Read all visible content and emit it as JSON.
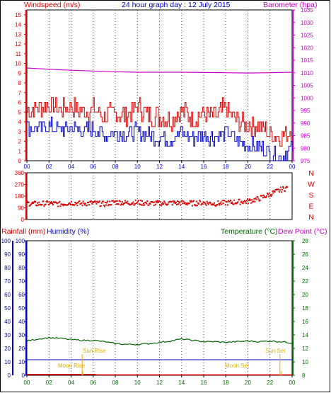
{
  "header": {
    "left_title": "Windspeed (m/s)",
    "center_title": "24 hour graph day : 12 July 2015",
    "right_title": "Barometer (hpa)"
  },
  "colors": {
    "frame": "#000000",
    "grid": "#1a1a1a",
    "wind_gust": "#dd0000",
    "wind_avg": "#0000cc",
    "barometer": "#cc00cc",
    "wind_dir": "#dd0000",
    "rain": "#dd0000",
    "humidity": "#0000cc",
    "temperature": "#006600",
    "sun_moon": "#e0b000"
  },
  "x_ticks": [
    "00",
    "02",
    "04",
    "06",
    "08",
    "10",
    "12",
    "14",
    "16",
    "18",
    "20",
    "22",
    "00"
  ],
  "wind_speed_ticks": [
    "0",
    "1",
    "2",
    "3",
    "4",
    "5",
    "6",
    "7",
    "8",
    "9",
    "10",
    "11",
    "12",
    "13",
    "14",
    "15"
  ],
  "barometer_ticks": [
    "975",
    "980",
    "985",
    "990",
    "995",
    "1000",
    "1005",
    "1010",
    "1015",
    "1020",
    "1025",
    "1030",
    "1035"
  ],
  "direction_ticks": [
    "0",
    "90",
    "180",
    "270",
    "360"
  ],
  "compass_labels": [
    "N",
    "W",
    "S",
    "E",
    "N"
  ],
  "lower_panel": {
    "rain_label": "Rainfall (mm)",
    "humidity_label": "Humidity (%)",
    "temp_label": "Temperature (°C)",
    "dew_label": "Dew Point (°C)",
    "pct_ticks": [
      "0",
      "10",
      "20",
      "30",
      "40",
      "50",
      "60",
      "70",
      "80",
      "90",
      "100"
    ],
    "temp_ticks": [
      "8",
      "10",
      "12",
      "14",
      "16",
      "18",
      "20",
      "22",
      "24",
      "26",
      "28"
    ],
    "sun_rise": "Sun Rise",
    "sun_set": "Sun Set",
    "moon_rise": "Moon Rise",
    "moon_set": "Moon Set"
  },
  "chart_data": [
    {
      "type": "line",
      "title": "24 hour graph day : 12 July 2015",
      "xlabel": "",
      "ylabel": "Windspeed (m/s)",
      "y2label": "Barometer (hpa)",
      "x_range": [
        0,
        24
      ],
      "ylim": [
        0,
        15.5
      ],
      "y2lim": [
        975,
        1035
      ],
      "series": [
        {
          "name": "Windspeed (m/s)",
          "axis": "left",
          "x": [
            0,
            1,
            2,
            3,
            4,
            5,
            6,
            7,
            8,
            9,
            10,
            11,
            12,
            13,
            14,
            15,
            16,
            17,
            18,
            19,
            20,
            21,
            22,
            23,
            24
          ],
          "values": [
            5.2,
            5.5,
            5.8,
            5.3,
            5.6,
            5.0,
            5.4,
            4.6,
            4.9,
            4.7,
            5.6,
            4.7,
            4.5,
            4.2,
            5.2,
            4.3,
            4.9,
            4.5,
            5.5,
            4.0,
            3.8,
            3.5,
            2.8,
            2.4,
            3.2
          ]
        },
        {
          "name": "",
          "axis": "left",
          "x": [
            0,
            1,
            2,
            3,
            4,
            5,
            6,
            7,
            8,
            9,
            10,
            11,
            12,
            13,
            14,
            15,
            16,
            17,
            18,
            19,
            20,
            21,
            22,
            23,
            24
          ],
          "values": [
            3.5,
            3.3,
            3.6,
            3.2,
            3.5,
            3.0,
            3.3,
            2.6,
            2.9,
            2.7,
            3.1,
            2.6,
            2.4,
            2.2,
            3.0,
            2.3,
            2.6,
            2.4,
            3.0,
            2.1,
            1.6,
            1.5,
            0.8,
            0.5,
            1.2
          ]
        },
        {
          "name": "Barometer (hpa)",
          "axis": "right",
          "x": [
            0,
            2,
            4,
            6,
            8,
            10,
            12,
            14,
            16,
            18,
            20,
            22,
            24
          ],
          "values": [
            1011.9,
            1011.4,
            1011.0,
            1010.7,
            1010.4,
            1010.2,
            1010.2,
            1010.2,
            1010.1,
            1010.0,
            1009.9,
            1010.0,
            1010.2
          ]
        }
      ]
    },
    {
      "type": "scatter",
      "title": "",
      "ylabel": "",
      "x_range": [
        0,
        24
      ],
      "ylim": [
        0,
        360
      ],
      "series": [
        {
          "name": "",
          "x": [
            0,
            1,
            2,
            3,
            4,
            5,
            6,
            7,
            8,
            9,
            10,
            11,
            12,
            13,
            14,
            15,
            16,
            17,
            18,
            19,
            20,
            21,
            22,
            23,
            24
          ],
          "values": [
            125,
            120,
            125,
            118,
            130,
            122,
            128,
            118,
            135,
            128,
            132,
            124,
            125,
            128,
            128,
            125,
            130,
            122,
            128,
            135,
            140,
            160,
            195,
            230,
            255
          ]
        }
      ]
    },
    {
      "type": "line",
      "title": "",
      "ylabel": "Rainfall (mm) / Humidity (%)",
      "y2label": "Temperature (°C) / Dew Point (°C)",
      "x_range": [
        0,
        24
      ],
      "ylim": [
        0,
        100
      ],
      "y2lim": [
        8,
        28
      ],
      "series": [
        {
          "name": "Temperature (°C)",
          "axis": "right",
          "x": [
            0,
            1,
            2,
            3,
            4,
            5,
            6,
            7,
            8,
            9,
            10,
            11,
            12,
            13,
            14,
            15,
            16,
            17,
            18,
            19,
            20,
            21,
            22,
            23,
            24
          ],
          "values": [
            13.1,
            13.4,
            13.6,
            13.5,
            13.3,
            13.2,
            13.2,
            13.0,
            12.7,
            12.6,
            12.6,
            12.7,
            12.9,
            13.1,
            13.4,
            13.2,
            13.0,
            13.0,
            12.9,
            13.0,
            13.1,
            13.0,
            13.1,
            13.0,
            12.8
          ]
        },
        {
          "name": "Rainfall (mm)",
          "axis": "left",
          "x": [
            0,
            6.2,
            24
          ],
          "values": [
            0.6,
            0.3,
            0.3
          ]
        }
      ],
      "annotations": [
        {
          "label": "Sun Rise",
          "x": 5.0
        },
        {
          "label": "Sun Set",
          "x": 22.9
        },
        {
          "label": "Moon Rise",
          "x": 4.8
        },
        {
          "label": "Moon Set",
          "x": 22.9
        }
      ]
    }
  ]
}
